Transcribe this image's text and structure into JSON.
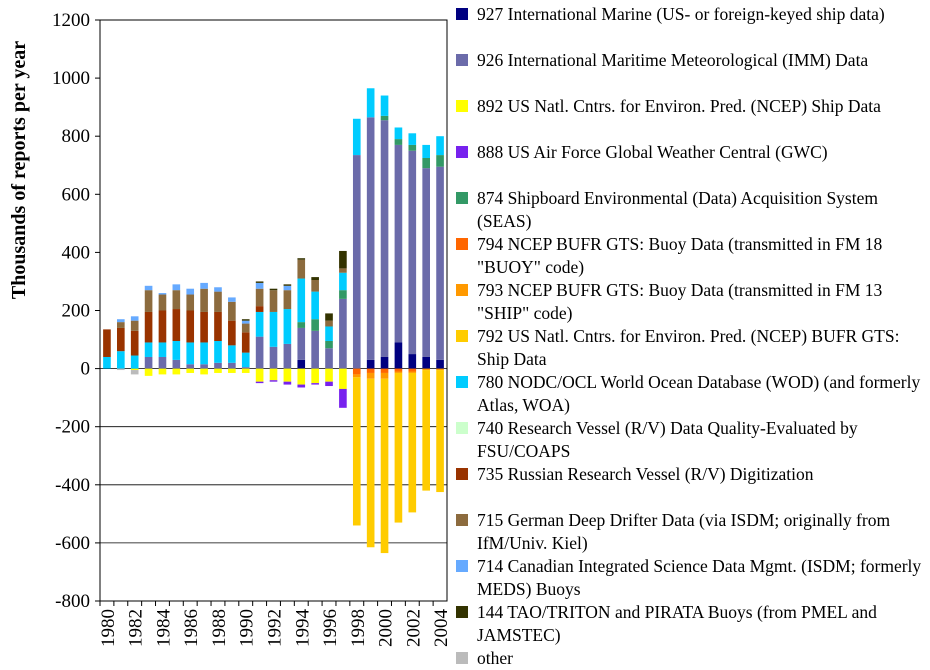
{
  "chart_data": {
    "type": "bar",
    "stacked": true,
    "title": "",
    "xlabel": "",
    "ylabel": "Thousands of reports per year",
    "ylim": [
      -800,
      1200
    ],
    "yticks": [
      "1200",
      "1000",
      "800",
      "600",
      "400",
      "200",
      "0",
      "-200",
      "-400",
      "-600",
      "-800"
    ],
    "gridlines": [
      0,
      -200,
      -400,
      -600
    ],
    "xtick_labels": [
      "1980",
      "1982",
      "1984",
      "1986",
      "1988",
      "1990",
      "1992",
      "1994",
      "1996",
      "1998",
      "2000",
      "2002",
      "2004"
    ],
    "years": [
      1980,
      1981,
      1982,
      1983,
      1984,
      1985,
      1986,
      1987,
      1988,
      1989,
      1990,
      1991,
      1992,
      1993,
      1994,
      1995,
      1996,
      1997,
      1998,
      1999,
      2000,
      2001,
      2002,
      2003,
      2004
    ],
    "legend_position": "right",
    "series": [
      {
        "name": "927 International Marine (US- or foreign-keyed ship data)",
        "color": "#000080",
        "values": [
          0,
          0,
          0,
          0,
          0,
          0,
          0,
          0,
          0,
          0,
          0,
          0,
          0,
          0,
          30,
          0,
          0,
          0,
          0,
          30,
          40,
          90,
          50,
          40,
          30
        ]
      },
      {
        "name": "926 International Maritime Meteorological (IMM) Data",
        "color": "#6b6baa",
        "values": [
          0,
          0,
          0,
          40,
          40,
          30,
          15,
          15,
          20,
          20,
          5,
          110,
          75,
          85,
          110,
          130,
          70,
          240,
          735,
          835,
          815,
          680,
          700,
          650,
          665
        ]
      },
      {
        "name": "892 US Natl. Cntrs. for Environ. Pred. (NCEP) Ship Data",
        "color": "#ffff00",
        "values": [
          0,
          0,
          -5,
          -25,
          -20,
          -20,
          -15,
          -20,
          -15,
          -15,
          -15,
          -45,
          -40,
          -45,
          -55,
          -50,
          -45,
          -70,
          0,
          0,
          0,
          0,
          0,
          0,
          0
        ]
      },
      {
        "name": "888 US Air Force Global Weather Central (GWC)",
        "color": "#7722ee",
        "values": [
          0,
          0,
          0,
          0,
          0,
          0,
          0,
          0,
          0,
          0,
          0,
          -5,
          -5,
          -10,
          -10,
          -5,
          -15,
          -65,
          0,
          0,
          0,
          0,
          0,
          0,
          0
        ]
      },
      {
        "name": "874 Shipboard Environmental (Data) Acquisition System (SEAS)",
        "color": "#339966",
        "values": [
          0,
          0,
          0,
          0,
          0,
          0,
          0,
          0,
          0,
          0,
          0,
          0,
          0,
          0,
          20,
          40,
          25,
          30,
          0,
          0,
          15,
          20,
          20,
          35,
          40
        ]
      },
      {
        "name": "794 NCEP BUFR GTS: Buoy Data (transmitted in FM 18 \"BUOY\" code)",
        "color": "#ff6600",
        "values": [
          0,
          0,
          0,
          0,
          0,
          0,
          0,
          0,
          0,
          0,
          0,
          0,
          0,
          0,
          0,
          0,
          0,
          0,
          -20,
          -15,
          -15,
          -10,
          -10,
          0,
          0
        ]
      },
      {
        "name": "793 NCEP BUFR GTS: Buoy Data (transmitted in FM 13 \"SHIP\" code)",
        "color": "#ff9900",
        "values": [
          0,
          0,
          0,
          0,
          0,
          0,
          0,
          0,
          0,
          0,
          0,
          0,
          0,
          0,
          0,
          0,
          0,
          0,
          -10,
          -20,
          -20,
          -5,
          -5,
          -5,
          -5
        ]
      },
      {
        "name": "792 US Natl. Cntrs. for Environ. Pred. (NCEP) BUFR GTS: Ship Data",
        "color": "#ffcc00",
        "values": [
          0,
          0,
          0,
          0,
          0,
          0,
          0,
          0,
          0,
          0,
          0,
          0,
          0,
          0,
          0,
          0,
          0,
          0,
          -510,
          -580,
          -600,
          -515,
          -480,
          -415,
          -420
        ]
      },
      {
        "name": "780 NODC/OCL World Ocean Database (WOD) (and formerly Atlas, WOA)",
        "color": "#00ccff",
        "values": [
          40,
          60,
          45,
          50,
          50,
          65,
          75,
          75,
          75,
          60,
          50,
          85,
          120,
          120,
          150,
          95,
          50,
          60,
          125,
          100,
          70,
          40,
          40,
          45,
          65
        ]
      },
      {
        "name": "740 Research Vessel (R/V) Data Quality-Evaluated by FSU/COAPS",
        "color": "#ccffcc",
        "values": [
          0,
          0,
          0,
          0,
          0,
          0,
          0,
          0,
          0,
          0,
          0,
          0,
          0,
          0,
          0,
          0,
          0,
          0,
          0,
          0,
          0,
          0,
          0,
          0,
          0
        ]
      },
      {
        "name": "735 Russian Research Vessel (R/V) Digitization",
        "color": "#993300",
        "values": [
          95,
          80,
          85,
          105,
          110,
          110,
          110,
          105,
          100,
          85,
          70,
          20,
          0,
          0,
          0,
          0,
          0,
          0,
          0,
          0,
          0,
          0,
          0,
          0,
          0
        ]
      },
      {
        "name": "715 German Deep Drifter Data (via ISDM; originally from IfM/Univ. Kiel)",
        "color": "#8c6b3e",
        "values": [
          0,
          20,
          35,
          75,
          55,
          65,
          55,
          80,
          70,
          65,
          30,
          60,
          75,
          65,
          65,
          40,
          20,
          15,
          0,
          0,
          0,
          0,
          0,
          0,
          0
        ]
      },
      {
        "name": "714 Canadian Integrated Science Data Mgmt. (ISDM; formerly MEDS) Buoys",
        "color": "#66aaff",
        "values": [
          0,
          10,
          15,
          15,
          5,
          20,
          20,
          20,
          15,
          15,
          10,
          20,
          0,
          15,
          0,
          0,
          0,
          0,
          0,
          0,
          0,
          0,
          0,
          0,
          0
        ]
      },
      {
        "name": "144 TAO/TRITON and PIRATA Buoys (from PMEL and JAMSTEC)",
        "color": "#333300",
        "values": [
          0,
          0,
          0,
          0,
          0,
          0,
          0,
          0,
          0,
          0,
          5,
          5,
          5,
          5,
          5,
          10,
          25,
          60,
          0,
          0,
          0,
          0,
          0,
          0,
          0
        ]
      },
      {
        "name": "other",
        "color": "#bbbbbb",
        "values": [
          0,
          -5,
          -15,
          0,
          0,
          0,
          0,
          0,
          0,
          0,
          0,
          0,
          0,
          0,
          0,
          0,
          0,
          0,
          0,
          0,
          0,
          0,
          0,
          0,
          0
        ]
      }
    ]
  }
}
